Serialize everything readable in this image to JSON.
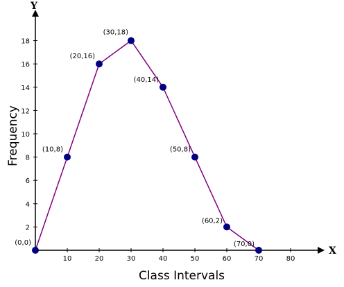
{
  "chart_data": {
    "type": "line",
    "title": "",
    "xlabel": "Class Intervals",
    "ylabel": "Frequency",
    "x_axis_letter": "X",
    "y_axis_letter": "Y",
    "xlim": [
      0,
      80
    ],
    "ylim": [
      0,
      18
    ],
    "x_ticks": [
      10,
      20,
      30,
      40,
      50,
      60,
      70,
      80
    ],
    "y_ticks": [
      2,
      4,
      6,
      8,
      10,
      12,
      14,
      16,
      18
    ],
    "grid": false,
    "line_color": "#800080",
    "marker_color": "#000080",
    "series": [
      {
        "points": [
          {
            "x": 0,
            "y": 0,
            "label": "(0,0)"
          },
          {
            "x": 10,
            "y": 8,
            "label": "(10,8)"
          },
          {
            "x": 20,
            "y": 16,
            "label": "(20,16)"
          },
          {
            "x": 30,
            "y": 18,
            "label": "(30,18)"
          },
          {
            "x": 40,
            "y": 14,
            "label": "(40,14)"
          },
          {
            "x": 50,
            "y": 8,
            "label": "(50,8)"
          },
          {
            "x": 60,
            "y": 2,
            "label": "(60,2)"
          },
          {
            "x": 70,
            "y": 0,
            "label": "(70,0)"
          }
        ]
      }
    ]
  }
}
